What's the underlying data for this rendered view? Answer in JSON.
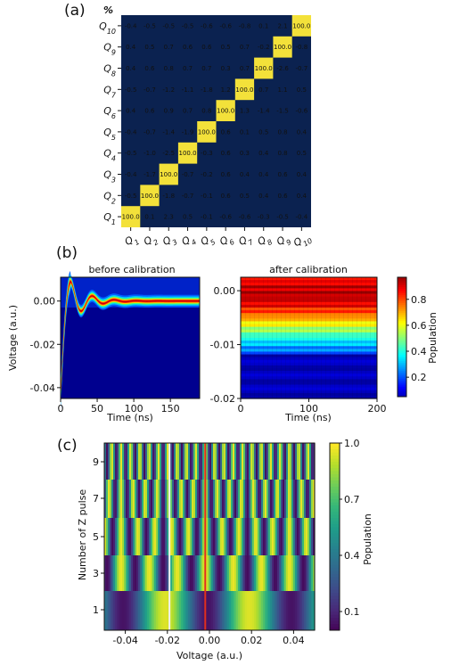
{
  "chart_data": [
    {
      "type": "heatmap",
      "panel_label": "(a)",
      "unit_label": "%",
      "x_tick_labels": [
        "Q1",
        "Q2",
        "Q3",
        "Q4",
        "Q5",
        "Q6",
        "Q7",
        "Q8",
        "Q9",
        "Q10"
      ],
      "y_tick_labels": [
        "Q10",
        "Q9",
        "Q8",
        "Q7",
        "Q6",
        "Q5",
        "Q4",
        "Q3",
        "Q2",
        "Q1"
      ],
      "colors": {
        "background": "#0b2250",
        "diagonal": "#f3e13a",
        "text": "#ffffff"
      },
      "matrix": [
        [
          -0.4,
          -0.5,
          -0.5,
          -0.5,
          -0.6,
          -0.6,
          -0.8,
          0.1,
          2.1,
          100.0
        ],
        [
          0.4,
          0.5,
          0.7,
          0.6,
          0.6,
          0.5,
          0.7,
          -0.2,
          100.0,
          -0.8
        ],
        [
          0.4,
          0.6,
          0.8,
          0.7,
          0.7,
          0.3,
          0.7,
          100.0,
          -2.6,
          -0.7
        ],
        [
          -0.5,
          -0.7,
          -1.2,
          -1.1,
          -1.8,
          1.2,
          100.0,
          0.7,
          1.1,
          0.5
        ],
        [
          0.4,
          0.6,
          0.9,
          0.7,
          0.8,
          100.0,
          1.3,
          -1.4,
          -1.5,
          -0.6
        ],
        [
          -0.4,
          -0.7,
          -1.4,
          -1.9,
          100.0,
          0.6,
          0.1,
          0.5,
          0.8,
          0.4
        ],
        [
          -0.5,
          -1.0,
          -2.5,
          100.0,
          -0.3,
          0.6,
          0.3,
          0.4,
          0.8,
          0.5
        ],
        [
          -0.4,
          -1.7,
          100.0,
          -0.7,
          -0.2,
          0.6,
          0.4,
          0.4,
          0.6,
          0.4
        ],
        [
          -0.5,
          100.0,
          -1.8,
          -0.7,
          -0.1,
          0.6,
          0.5,
          0.4,
          0.6,
          0.4
        ],
        [
          100.0,
          0.1,
          2.3,
          0.5,
          -0.1,
          -0.6,
          -0.6,
          -0.3,
          -0.5,
          -0.4
        ]
      ]
    },
    {
      "type": "heatmap",
      "panel_label": "(b)",
      "title": "before calibration",
      "xlabel": "Time (ns)",
      "ylabel": "Voltage (a.u.)",
      "colormap": "jet",
      "xlim": [
        0,
        190
      ],
      "ylim": [
        -0.045,
        0.011
      ],
      "x_ticks": [
        "0",
        "50",
        "100",
        "150"
      ],
      "y_ticks": [
        "-0.04",
        "-0.02",
        "0.00"
      ],
      "description_values": {
        "settle_voltage": 0.0,
        "overshoot_peak": 0.009,
        "undershoot_min": -0.007
      }
    },
    {
      "type": "heatmap",
      "title": "after calibration",
      "xlabel": "Time (ns)",
      "colormap": "jet",
      "xlim": [
        0,
        200
      ],
      "ylim": [
        -0.02,
        0.0025
      ],
      "x_ticks": [
        "0",
        "100",
        "200"
      ],
      "y_ticks": [
        "-0.02",
        "-0.01",
        "0.00"
      ],
      "colorbar": {
        "label": "Population",
        "ticks": [
          "0.2",
          "0.4",
          "0.6",
          "0.8"
        ],
        "range": [
          0.05,
          0.97
        ]
      }
    },
    {
      "type": "heatmap",
      "panel_label": "(c)",
      "xlabel": "Voltage (a.u.)",
      "ylabel": "Number of Z pulse",
      "colormap": "viridis",
      "xlim": [
        -0.05,
        0.05
      ],
      "x_ticks": [
        "-0.04",
        "-0.02",
        "0.00",
        "0.02",
        "0.04"
      ],
      "y_ticks": [
        "1",
        "3",
        "5",
        "7",
        "9"
      ],
      "rows_with_pulses": [
        1,
        3,
        5,
        7,
        9
      ],
      "markers": {
        "white_line_voltage": -0.019,
        "red_line_voltage": -0.002
      },
      "colorbar": {
        "label": "Population",
        "ticks": [
          "0.1",
          "0.4",
          "0.7",
          "1.0"
        ],
        "range": [
          0.0,
          1.0
        ]
      }
    }
  ]
}
